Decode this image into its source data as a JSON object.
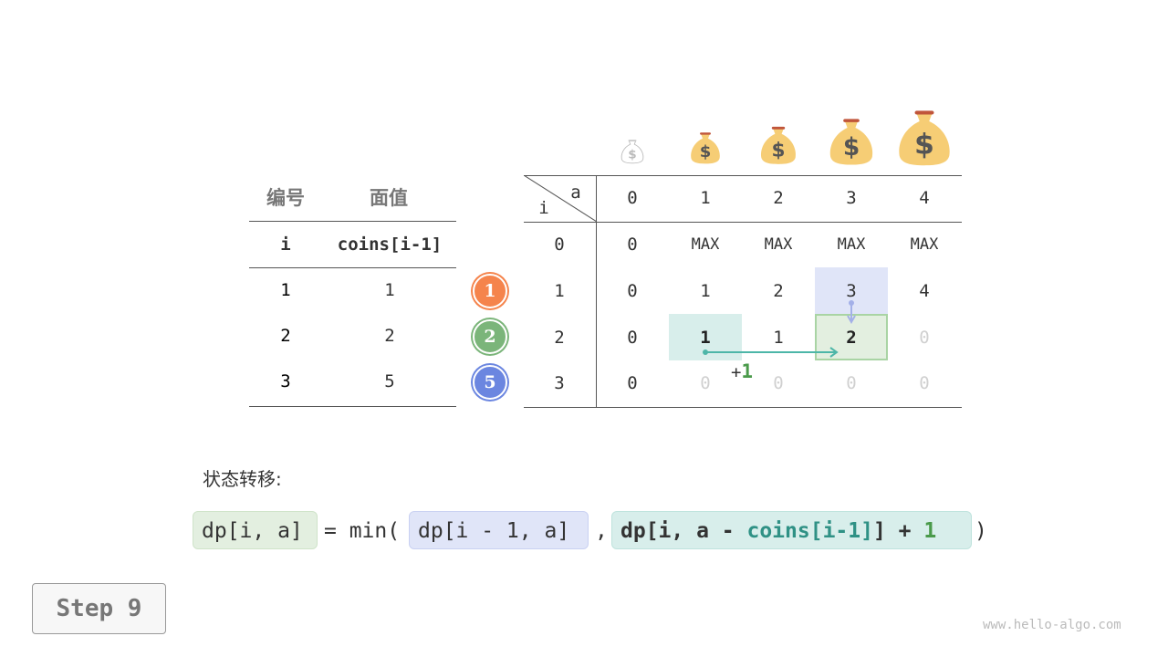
{
  "coin_table": {
    "headers": [
      "编号",
      "面值"
    ],
    "subheaders": [
      "i",
      "coins[i-1]"
    ],
    "rows": [
      [
        "1",
        "1"
      ],
      [
        "2",
        "2"
      ],
      [
        "3",
        "5"
      ]
    ]
  },
  "coin_badges": [
    "1",
    "2",
    "5"
  ],
  "badge_colors": [
    "#f5844c",
    "#7bb57a",
    "#6b86e0"
  ],
  "dp_table": {
    "corner_col": "a",
    "corner_row": "i",
    "columns": [
      "0",
      "1",
      "2",
      "3",
      "4"
    ],
    "row_labels": [
      "0",
      "1",
      "2",
      "3"
    ],
    "cells": [
      [
        "0",
        "MAX",
        "MAX",
        "MAX",
        "MAX"
      ],
      [
        "0",
        "1",
        "2",
        "3",
        "4"
      ],
      [
        "0",
        "1",
        "1",
        "2",
        "0"
      ],
      [
        "0",
        "0",
        "0",
        "0",
        "0"
      ]
    ],
    "faint": [
      [
        false,
        false,
        false,
        false,
        false
      ],
      [
        false,
        false,
        false,
        false,
        false
      ],
      [
        false,
        false,
        false,
        false,
        true
      ],
      [
        false,
        true,
        true,
        true,
        true
      ]
    ],
    "bold": [
      [
        2,
        1
      ],
      [
        2,
        3
      ]
    ],
    "plus_label": "+",
    "plus_value": "1"
  },
  "icons": [
    "money-bag-icon"
  ],
  "transition_label": "状态转移:",
  "formula": {
    "lhs": "dp[i, a]",
    "eq": "= min(",
    "term1": "dp[i - 1, a]",
    "comma": ",",
    "term2_a": "dp[i, a - ",
    "term2_b": "coins[i-1]",
    "term2_c": "] + ",
    "term2_d": "1",
    "close": ")"
  },
  "step_label": "Step 9",
  "watermark": "www.hello-algo.com"
}
